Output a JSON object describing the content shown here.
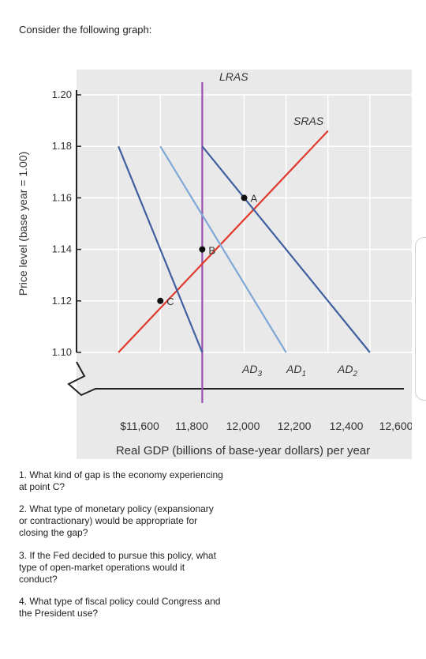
{
  "prompt": "Consider the following graph:",
  "questions": [
    "1. What kind of gap is the economy experiencing at point C?",
    "2. What type of monetary policy (expansionary or contractionary) would be appropriate for closing the gap?",
    "3. If the Fed decided to pursue this policy, what type of open-market operations would it conduct?",
    "4. What type of fiscal policy could Congress and the President use?"
  ],
  "chart_data": {
    "type": "line",
    "title": "",
    "xlabel": "Real GDP (billions of base-year dollars) per year",
    "ylabel": "Price level (base year = 1.00)",
    "x_ticks": [
      "$11,600",
      "11,800",
      "12,000",
      "12,200",
      "12,400",
      "12,600"
    ],
    "y_ticks": [
      "1.20",
      "1.18",
      "1.16",
      "1.14",
      "1.12",
      "1.10"
    ],
    "y_tick_values": [
      1.2,
      1.18,
      1.16,
      1.14,
      1.12,
      1.1
    ],
    "ylim": [
      1.1,
      1.2
    ],
    "series": [
      {
        "name": "LRAS",
        "color": "#9b4fb0",
        "points": [
          [
            12000,
            1.1
          ],
          [
            12000,
            1.2
          ]
        ]
      },
      {
        "name": "SRAS",
        "color": "#e0392b",
        "points": [
          [
            11800,
            1.1
          ],
          [
            12300,
            1.186
          ]
        ]
      },
      {
        "name": "AD3",
        "color": "#3f5f9f",
        "points": [
          [
            11800,
            1.18
          ],
          [
            12000,
            1.1
          ]
        ]
      },
      {
        "name": "AD1",
        "color": "#7fa8d6",
        "points": [
          [
            11900,
            1.18
          ],
          [
            12200,
            1.1
          ]
        ]
      },
      {
        "name": "AD2",
        "color": "#3f5f9f",
        "points": [
          [
            12000,
            1.18
          ],
          [
            12400,
            1.1
          ]
        ]
      }
    ],
    "points": [
      {
        "label": "A",
        "x": 12100,
        "y": 1.16
      },
      {
        "label": "B",
        "x": 12000,
        "y": 1.14
      },
      {
        "label": "C",
        "x": 11900,
        "y": 1.12
      }
    ],
    "legend": "labels placed at line ends",
    "grid": true
  }
}
